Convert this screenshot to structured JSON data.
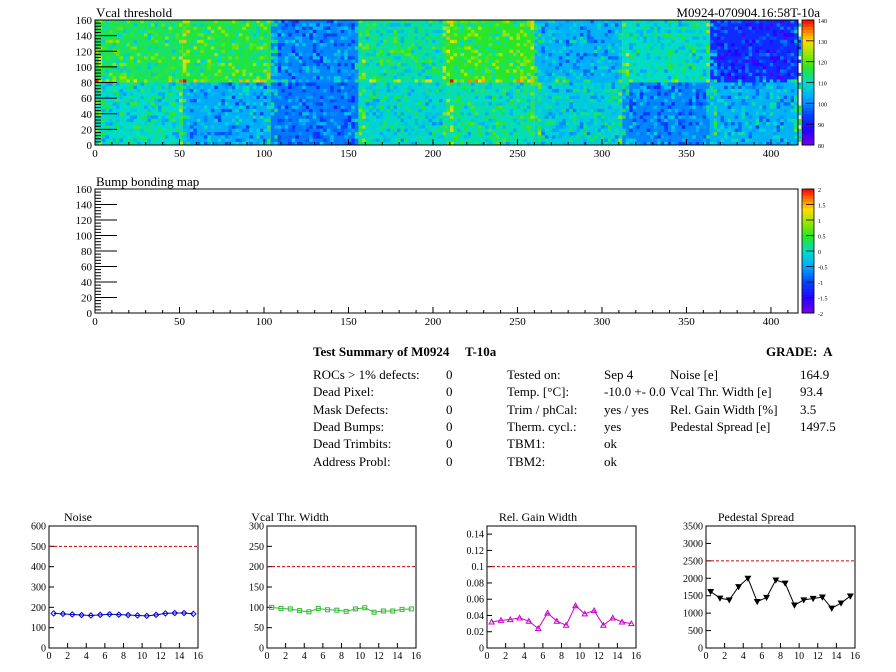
{
  "header": {
    "map_title": "Vcal threshold",
    "run_label": "M0924-070904.16:58T-10a",
    "bump_title": "Bump bonding map"
  },
  "summary": {
    "title": "Test Summary of M0924",
    "test": "T-10a",
    "grade_label": "GRADE:",
    "grade": "A",
    "defects": [
      {
        "label": "ROCs > 1% defects:",
        "value": "0"
      },
      {
        "label": "Dead Pixel:",
        "value": "0"
      },
      {
        "label": "Mask Defects:",
        "value": "0"
      },
      {
        "label": "Dead Bumps:",
        "value": "0"
      },
      {
        "label": "Dead Trimbits:",
        "value": "0"
      },
      {
        "label": "Address Probl:",
        "value": "0"
      }
    ],
    "conditions": [
      {
        "label": "Tested on:",
        "value": "Sep 4"
      },
      {
        "label": "Temp. [°C]:",
        "value": "-10.0 +- 0.0"
      },
      {
        "label": "Trim / phCal:",
        "value": "yes / yes"
      },
      {
        "label": "Therm. cycl.:",
        "value": "yes"
      },
      {
        "label": "TBM1:",
        "value": "ok"
      },
      {
        "label": "TBM2:",
        "value": "ok"
      }
    ],
    "metrics": [
      {
        "label": "Noise [e]",
        "value": "164.9"
      },
      {
        "label": "Vcal Thr. Width [e]",
        "value": "93.4"
      },
      {
        "label": "Rel. Gain Width [%]",
        "value": "3.5"
      },
      {
        "label": "Pedestal Spread [e]",
        "value": "1497.5"
      }
    ]
  },
  "chart_data": [
    {
      "type": "heatmap",
      "title": "Vcal threshold",
      "xlim": [
        0,
        416
      ],
      "ylim": [
        0,
        160
      ],
      "xticks": [
        0,
        50,
        100,
        150,
        200,
        250,
        300,
        350,
        400
      ],
      "yticks": [
        0,
        20,
        40,
        60,
        80,
        100,
        120,
        140,
        160
      ],
      "colorbar": {
        "min": 80,
        "max": 140,
        "ticks": [
          80,
          90,
          100,
          110,
          120,
          130,
          140
        ]
      },
      "roc_mean_values_top": [
        115,
        116,
        100,
        112,
        117,
        104,
        110,
        92
      ],
      "roc_mean_values_bottom": [
        110,
        103,
        99,
        109,
        111,
        108,
        100,
        104
      ]
    },
    {
      "type": "heatmap",
      "title": "Bump bonding map",
      "xlim": [
        0,
        416
      ],
      "ylim": [
        0,
        160
      ],
      "xticks": [
        0,
        50,
        100,
        150,
        200,
        250,
        300,
        350,
        400
      ],
      "yticks": [
        0,
        20,
        40,
        60,
        80,
        100,
        120,
        140,
        160
      ],
      "colorbar": {
        "min": -2,
        "max": 2,
        "ticks": [
          -2,
          -1.5,
          -1,
          -0.5,
          0,
          0.5,
          1,
          1.5,
          2
        ]
      }
    },
    {
      "type": "line",
      "title": "Noise",
      "x": [
        0,
        1,
        2,
        3,
        4,
        5,
        6,
        7,
        8,
        9,
        10,
        11,
        12,
        13,
        14,
        15
      ],
      "values": [
        170,
        168,
        165,
        162,
        160,
        163,
        166,
        164,
        162,
        160,
        158,
        163,
        170,
        172,
        172,
        168
      ],
      "xlim": [
        0,
        16
      ],
      "ylim": [
        0,
        600
      ],
      "yticks": [
        0,
        100,
        200,
        300,
        400,
        500,
        600
      ],
      "xticks": [
        0,
        2,
        4,
        6,
        8,
        10,
        12,
        14,
        16
      ],
      "limit": 500,
      "color": "#0000cc",
      "marker": "diamond"
    },
    {
      "type": "line",
      "title": "Vcal Thr. Width",
      "x": [
        0,
        1,
        2,
        3,
        4,
        5,
        6,
        7,
        8,
        9,
        10,
        11,
        12,
        13,
        14,
        15
      ],
      "values": [
        100,
        97,
        96,
        92,
        89,
        97,
        94,
        93,
        90,
        96,
        99,
        88,
        91,
        91,
        95,
        96
      ],
      "xlim": [
        0,
        16
      ],
      "ylim": [
        0,
        300
      ],
      "yticks": [
        0,
        50,
        100,
        150,
        200,
        250,
        300
      ],
      "xticks": [
        0,
        2,
        4,
        6,
        8,
        10,
        12,
        14,
        16
      ],
      "limit": 200,
      "color": "#33bb33",
      "marker": "square"
    },
    {
      "type": "line",
      "title": "Rel. Gain Width",
      "x": [
        0,
        1,
        2,
        3,
        4,
        5,
        6,
        7,
        8,
        9,
        10,
        11,
        12,
        13,
        14,
        15
      ],
      "values": [
        0.032,
        0.034,
        0.035,
        0.037,
        0.033,
        0.024,
        0.043,
        0.033,
        0.028,
        0.052,
        0.042,
        0.046,
        0.028,
        0.037,
        0.032,
        0.03
      ],
      "xlim": [
        0,
        16
      ],
      "ylim": [
        0,
        0.15
      ],
      "yticks": [
        0,
        0.02,
        0.04,
        0.06,
        0.08,
        0.1,
        0.12,
        0.14
      ],
      "xticks": [
        0,
        2,
        4,
        6,
        8,
        10,
        12,
        14,
        16
      ],
      "limit": 0.1,
      "color": "#cc00cc",
      "marker": "triangle"
    },
    {
      "type": "line",
      "title": "Pedestal Spread",
      "x": [
        0,
        1,
        2,
        3,
        4,
        5,
        6,
        7,
        8,
        9,
        10,
        11,
        12,
        13,
        14,
        15
      ],
      "values": [
        1620,
        1430,
        1380,
        1760,
        2000,
        1330,
        1450,
        1950,
        1860,
        1230,
        1380,
        1420,
        1460,
        1140,
        1290,
        1490
      ],
      "xlim": [
        0,
        16
      ],
      "ylim": [
        0,
        3500
      ],
      "yticks": [
        0,
        500,
        1000,
        1500,
        2000,
        2500,
        3000,
        3500
      ],
      "xticks": [
        0,
        2,
        4,
        6,
        8,
        10,
        12,
        14,
        16
      ],
      "limit": 2500,
      "color": "#000000",
      "marker": "triangle-down"
    }
  ]
}
